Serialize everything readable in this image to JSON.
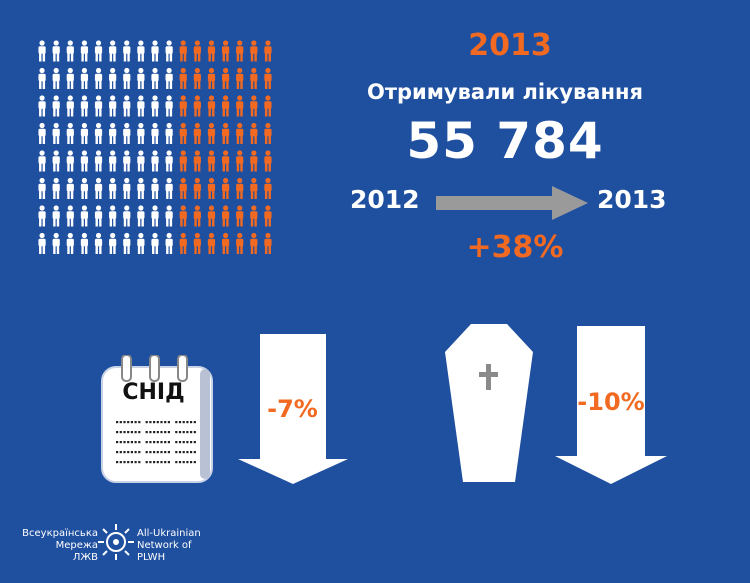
{
  "header": {
    "year": "2013",
    "subtitle": "Отримували лікування",
    "total_treated": "55 784"
  },
  "trend": {
    "from_year": "2012",
    "to_year": "2013",
    "change": "+38%"
  },
  "people_grid": {
    "rows": 8,
    "cols": 17,
    "highlighted_cols": 7,
    "base_color": "#ffffff",
    "highlight_color": "#f26a21"
  },
  "indicators": [
    {
      "icon": "calendar-icon",
      "calendar_label": "СНІД",
      "change": "-7%"
    },
    {
      "icon": "coffin-icon",
      "change": "-10%"
    }
  ],
  "logo": {
    "left_lines": [
      "Всеукраїнська",
      "Мережа",
      "ЛЖВ"
    ],
    "right_lines": [
      "All-Ukrainian",
      "Network of",
      "PLWH"
    ]
  },
  "colors": {
    "background": "#1f4f9f",
    "accent": "#f26a21",
    "arrow": "#9a9a9a"
  }
}
